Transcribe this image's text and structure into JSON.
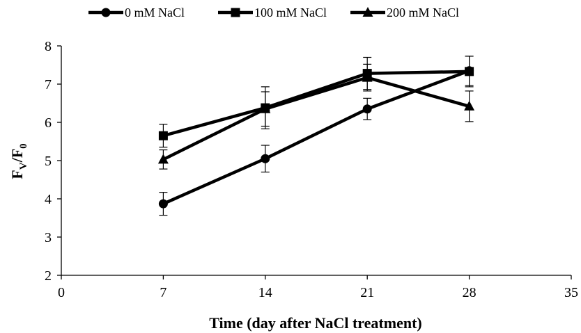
{
  "chart_data": {
    "type": "line",
    "title": "",
    "xlabel": "Time (day after NaCl treatment)",
    "ylabel": "FV/F0",
    "ylabel_parts": {
      "main1": "F",
      "sub1": "V",
      "slash": "/",
      "main2": "F",
      "sub2": "0"
    },
    "xlim": [
      0,
      35
    ],
    "ylim": [
      2,
      8
    ],
    "xticks": [
      0,
      7,
      14,
      21,
      28,
      35
    ],
    "yticks": [
      2,
      3,
      4,
      5,
      6,
      7,
      8
    ],
    "grid": false,
    "legend_position": "top",
    "series": [
      {
        "name": "0 mM NaCl",
        "marker": "circle",
        "x": [
          7,
          14,
          21,
          28
        ],
        "y": [
          3.87,
          5.05,
          6.35,
          7.35
        ],
        "err": [
          0.3,
          0.35,
          0.28,
          0.38
        ]
      },
      {
        "name": "100 mM NaCl",
        "marker": "square",
        "x": [
          7,
          14,
          21,
          28
        ],
        "y": [
          5.65,
          6.38,
          7.28,
          7.33
        ],
        "err": [
          0.3,
          0.55,
          0.42,
          0.4
        ]
      },
      {
        "name": "200 mM NaCl",
        "marker": "triangle",
        "x": [
          7,
          14,
          21,
          28
        ],
        "y": [
          5.03,
          6.35,
          7.17,
          6.42
        ],
        "err": [
          0.25,
          0.45,
          0.35,
          0.4
        ]
      }
    ]
  }
}
